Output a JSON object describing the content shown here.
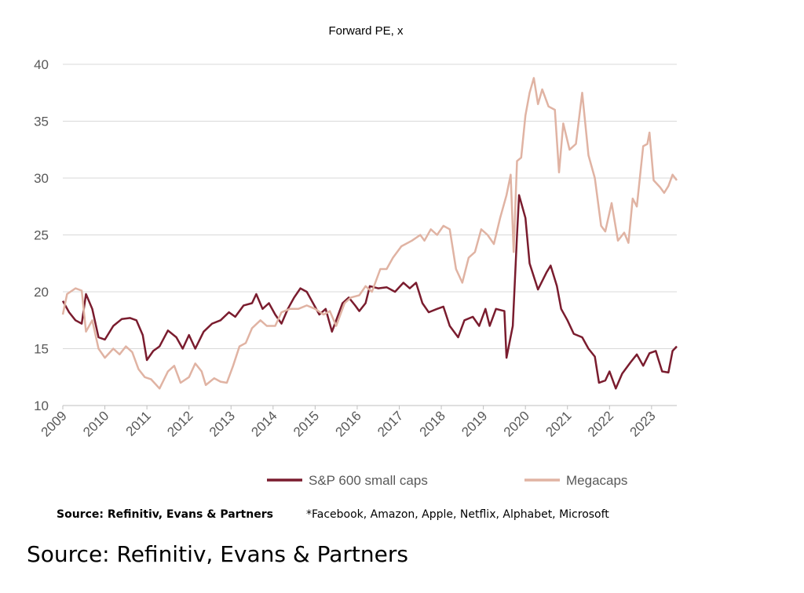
{
  "chart_data": {
    "type": "line",
    "title": "Forward PE, x",
    "xlim": [
      2009,
      2023.6
    ],
    "xticks": [
      2009,
      2010,
      2011,
      2012,
      2013,
      2014,
      2015,
      2016,
      2017,
      2018,
      2019,
      2020,
      2021,
      2022,
      2023
    ],
    "ylim": [
      10,
      40
    ],
    "yticks": [
      10,
      15,
      20,
      25,
      30,
      35,
      40
    ],
    "grid": true,
    "legend": "bottom",
    "series": [
      {
        "name": "S&P 600 small caps",
        "color": "#7a1c2e",
        "x": [
          2009.0,
          2009.15,
          2009.3,
          2009.45,
          2009.55,
          2009.7,
          2009.85,
          2010.0,
          2010.2,
          2010.4,
          2010.6,
          2010.75,
          2010.9,
          2011.0,
          2011.15,
          2011.3,
          2011.5,
          2011.7,
          2011.85,
          2012.0,
          2012.15,
          2012.35,
          2012.55,
          2012.75,
          2012.95,
          2013.1,
          2013.3,
          2013.5,
          2013.6,
          2013.75,
          2013.9,
          2014.05,
          2014.2,
          2014.35,
          2014.5,
          2014.65,
          2014.8,
          2014.95,
          2015.1,
          2015.25,
          2015.4,
          2015.5,
          2015.65,
          2015.8,
          2015.95,
          2016.05,
          2016.2,
          2016.3,
          2016.5,
          2016.7,
          2016.9,
          2017.1,
          2017.25,
          2017.4,
          2017.55,
          2017.7,
          2017.9,
          2018.05,
          2018.2,
          2018.4,
          2018.55,
          2018.75,
          2018.9,
          2019.05,
          2019.15,
          2019.3,
          2019.5,
          2019.55,
          2019.7,
          2019.8,
          2019.85,
          2020.0,
          2020.1,
          2020.3,
          2020.5,
          2020.6,
          2020.75,
          2020.85,
          2021.0,
          2021.15,
          2021.35,
          2021.5,
          2021.65,
          2021.75,
          2021.9,
          2022.0,
          2022.15,
          2022.3,
          2022.5,
          2022.65,
          2022.8,
          2022.95,
          2023.1,
          2023.25,
          2023.4,
          2023.5,
          2023.6
        ],
        "values": [
          19.2,
          18.2,
          17.5,
          17.2,
          19.8,
          18.5,
          16.0,
          15.8,
          17.0,
          17.6,
          17.7,
          17.5,
          16.2,
          14.0,
          14.8,
          15.2,
          16.6,
          16.0,
          15.0,
          16.2,
          15.0,
          16.5,
          17.2,
          17.5,
          18.2,
          17.8,
          18.8,
          19.0,
          19.8,
          18.5,
          19.0,
          18.0,
          17.2,
          18.5,
          19.5,
          20.3,
          20.0,
          19.0,
          18.0,
          18.5,
          16.5,
          17.5,
          19.0,
          19.5,
          18.8,
          18.3,
          19.0,
          20.5,
          20.3,
          20.4,
          20.0,
          20.8,
          20.3,
          20.8,
          19.0,
          18.2,
          18.5,
          18.7,
          17.0,
          16.0,
          17.5,
          17.8,
          17.0,
          18.5,
          17.0,
          18.5,
          18.3,
          14.2,
          17.0,
          25.0,
          28.5,
          26.5,
          22.5,
          20.2,
          21.7,
          22.3,
          20.5,
          18.5,
          17.5,
          16.3,
          16.0,
          15.0,
          14.3,
          12.0,
          12.2,
          13.0,
          11.5,
          12.8,
          13.8,
          14.5,
          13.5,
          14.6,
          14.8,
          13.0,
          12.9,
          14.8,
          15.2
        ]
      },
      {
        "name": "Megacaps",
        "color": "#e0b3a3",
        "x": [
          2009.0,
          2009.1,
          2009.3,
          2009.45,
          2009.55,
          2009.7,
          2009.85,
          2010.0,
          2010.2,
          2010.35,
          2010.5,
          2010.65,
          2010.8,
          2010.95,
          2011.1,
          2011.3,
          2011.5,
          2011.65,
          2011.8,
          2012.0,
          2012.15,
          2012.3,
          2012.4,
          2012.6,
          2012.75,
          2012.9,
          2013.05,
          2013.2,
          2013.35,
          2013.5,
          2013.7,
          2013.85,
          2014.05,
          2014.2,
          2014.4,
          2014.6,
          2014.8,
          2015.0,
          2015.2,
          2015.35,
          2015.5,
          2015.7,
          2015.85,
          2016.05,
          2016.2,
          2016.35,
          2016.55,
          2016.7,
          2016.85,
          2017.05,
          2017.3,
          2017.5,
          2017.6,
          2017.75,
          2017.9,
          2018.05,
          2018.2,
          2018.35,
          2018.5,
          2018.65,
          2018.8,
          2018.95,
          2019.1,
          2019.25,
          2019.4,
          2019.55,
          2019.65,
          2019.72,
          2019.8,
          2019.9,
          2020.0,
          2020.1,
          2020.2,
          2020.3,
          2020.4,
          2020.55,
          2020.7,
          2020.8,
          2020.9,
          2021.05,
          2021.2,
          2021.35,
          2021.5,
          2021.65,
          2021.8,
          2021.9,
          2022.05,
          2022.2,
          2022.35,
          2022.45,
          2022.55,
          2022.65,
          2022.8,
          2022.9,
          2022.95,
          2023.05,
          2023.2,
          2023.3,
          2023.4,
          2023.5,
          2023.6
        ],
        "values": [
          18.0,
          19.8,
          20.3,
          20.1,
          16.5,
          17.5,
          15.0,
          14.2,
          15.0,
          14.5,
          15.2,
          14.7,
          13.2,
          12.5,
          12.3,
          11.5,
          13.0,
          13.5,
          12.0,
          12.5,
          13.7,
          13.0,
          11.8,
          12.4,
          12.1,
          12.0,
          13.5,
          15.2,
          15.5,
          16.8,
          17.5,
          17.0,
          17.0,
          18.2,
          18.5,
          18.5,
          18.8,
          18.5,
          18.0,
          18.3,
          17.0,
          19.0,
          19.5,
          19.7,
          20.5,
          20.0,
          22.0,
          22.0,
          23.0,
          24.0,
          24.5,
          25.0,
          24.5,
          25.5,
          25.0,
          25.8,
          25.5,
          22.0,
          20.8,
          23.0,
          23.5,
          25.5,
          25.0,
          24.2,
          26.5,
          28.5,
          30.3,
          23.5,
          31.5,
          31.8,
          35.5,
          37.5,
          38.8,
          36.5,
          37.8,
          36.3,
          36.0,
          30.5,
          34.8,
          32.5,
          33.0,
          37.5,
          32.0,
          30.0,
          25.8,
          25.3,
          27.8,
          24.5,
          25.2,
          24.3,
          28.2,
          27.5,
          32.8,
          33.0,
          34.0,
          29.8,
          29.2,
          28.7,
          29.3,
          30.3,
          29.8
        ]
      }
    ]
  },
  "source_note": "Source: Refinitiv, Evans & Partners",
  "footnote": "*Facebook, Amazon, Apple, Netflix, Alphabet, Microsoft",
  "caption": "Source: Refinitiv, Evans & Partners"
}
